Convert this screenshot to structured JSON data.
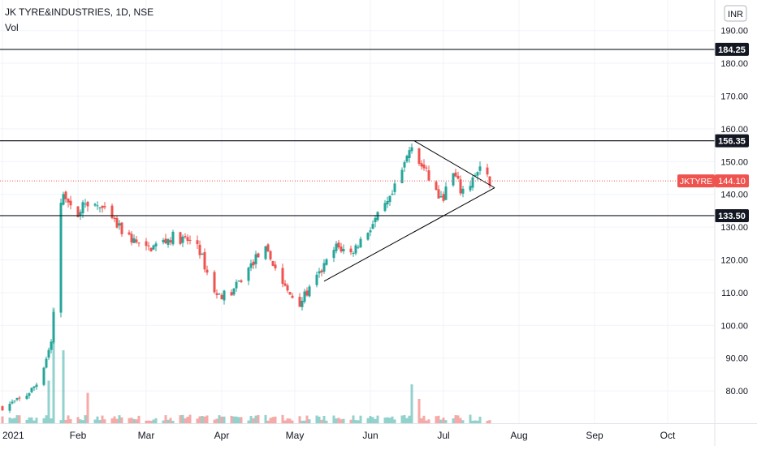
{
  "header": {
    "symbol_line": "JK TYRE&INDUSTRIES, 1D, NSE",
    "volume_label": "Vol"
  },
  "currency_badge": "INR",
  "colors": {
    "up": "#26a69a",
    "down": "#ef5350",
    "level_line": "#131722",
    "last_price": "#ef5350",
    "grid": "#f0f3fa",
    "axis_text": "#131722"
  },
  "chart_data": {
    "type": "candlestick",
    "title": "JK TYRE&INDUSTRIES, 1D, NSE",
    "ylim": [
      70,
      195
    ],
    "y_ticks": [
      {
        "value": 190,
        "label": "190.00"
      },
      {
        "value": 180,
        "label": "180.00"
      },
      {
        "value": 170,
        "label": "170.00"
      },
      {
        "value": 160,
        "label": "160.00"
      },
      {
        "value": 150,
        "label": "150.00"
      },
      {
        "value": 140,
        "label": "140.00"
      },
      {
        "value": 130,
        "label": "130.00"
      },
      {
        "value": 120,
        "label": "120.00"
      },
      {
        "value": 110,
        "label": "110.00"
      },
      {
        "value": 100,
        "label": "100.00"
      },
      {
        "value": 90,
        "label": "90.00"
      },
      {
        "value": 80,
        "label": "80.00"
      }
    ],
    "x_ticks": [
      {
        "date": "2021-01-01",
        "label": "2021"
      },
      {
        "date": "2021-02-01",
        "label": "Feb"
      },
      {
        "date": "2021-03-01",
        "label": "Mar"
      },
      {
        "date": "2021-04-01",
        "label": "Apr"
      },
      {
        "date": "2021-05-01",
        "label": "May"
      },
      {
        "date": "2021-06-01",
        "label": "Jun"
      },
      {
        "date": "2021-07-01",
        "label": "Jul"
      },
      {
        "date": "2021-08-01",
        "label": "Aug"
      },
      {
        "date": "2021-09-01",
        "label": "Sep"
      },
      {
        "date": "2021-10-01",
        "label": "Oct"
      }
    ],
    "horizontal_levels": [
      {
        "value": 184.25,
        "label": "184.25"
      },
      {
        "value": 156.35,
        "label": "156.35"
      },
      {
        "value": 133.5,
        "label": "133.50"
      }
    ],
    "last_price": {
      "symbol": "JKTYRE",
      "value": 144.1,
      "label": "144.10"
    },
    "trendlines": [
      {
        "from": {
          "date": "2021-05-13",
          "price": 113.5
        },
        "to": {
          "date": "2021-07-22",
          "price": 142.0
        }
      },
      {
        "from": {
          "date": "2021-06-19",
          "price": 156.35
        },
        "to": {
          "date": "2021-07-22",
          "price": 142.0
        }
      }
    ],
    "price_path": [
      {
        "date": "2021-01-01",
        "close": 75
      },
      {
        "date": "2021-01-10",
        "close": 78
      },
      {
        "date": "2021-01-16",
        "close": 83
      },
      {
        "date": "2021-01-21",
        "close": 95
      },
      {
        "date": "2021-01-23",
        "close": 112
      },
      {
        "date": "2021-01-25",
        "close": 138
      },
      {
        "date": "2021-01-27",
        "close": 140
      },
      {
        "date": "2021-01-30",
        "close": 133
      },
      {
        "date": "2021-02-05",
        "close": 138
      },
      {
        "date": "2021-02-10",
        "close": 136
      },
      {
        "date": "2021-02-20",
        "close": 128
      },
      {
        "date": "2021-03-01",
        "close": 123
      },
      {
        "date": "2021-03-12",
        "close": 127
      },
      {
        "date": "2021-03-22",
        "close": 125
      },
      {
        "date": "2021-03-26",
        "close": 116
      },
      {
        "date": "2021-03-30",
        "close": 109
      },
      {
        "date": "2021-04-05",
        "close": 110
      },
      {
        "date": "2021-04-10",
        "close": 115
      },
      {
        "date": "2021-04-18",
        "close": 124
      },
      {
        "date": "2021-04-22",
        "close": 119
      },
      {
        "date": "2021-04-28",
        "close": 110
      },
      {
        "date": "2021-05-03",
        "close": 107
      },
      {
        "date": "2021-05-08",
        "close": 112
      },
      {
        "date": "2021-05-13",
        "close": 118
      },
      {
        "date": "2021-05-18",
        "close": 124
      },
      {
        "date": "2021-05-24",
        "close": 122
      },
      {
        "date": "2021-05-31",
        "close": 129
      },
      {
        "date": "2021-06-04",
        "close": 133
      },
      {
        "date": "2021-06-09",
        "close": 138
      },
      {
        "date": "2021-06-14",
        "close": 147
      },
      {
        "date": "2021-06-18",
        "close": 156
      },
      {
        "date": "2021-06-21",
        "close": 150
      },
      {
        "date": "2021-06-25",
        "close": 145
      },
      {
        "date": "2021-06-30",
        "close": 138
      },
      {
        "date": "2021-07-05",
        "close": 146
      },
      {
        "date": "2021-07-09",
        "close": 140
      },
      {
        "date": "2021-07-13",
        "close": 145
      },
      {
        "date": "2021-07-16",
        "close": 147
      },
      {
        "date": "2021-07-20",
        "close": 144.1
      }
    ],
    "volume_spikes": [
      {
        "date": "2021-01-22",
        "level": 0.95
      },
      {
        "date": "2021-01-24",
        "level": 0.8
      },
      {
        "date": "2021-01-26",
        "level": 0.6
      },
      {
        "date": "2021-01-20",
        "level": 0.35
      },
      {
        "date": "2021-02-05",
        "level": 0.25
      },
      {
        "date": "2021-06-18",
        "level": 0.32
      },
      {
        "date": "2021-06-21",
        "level": 0.2
      }
    ]
  }
}
